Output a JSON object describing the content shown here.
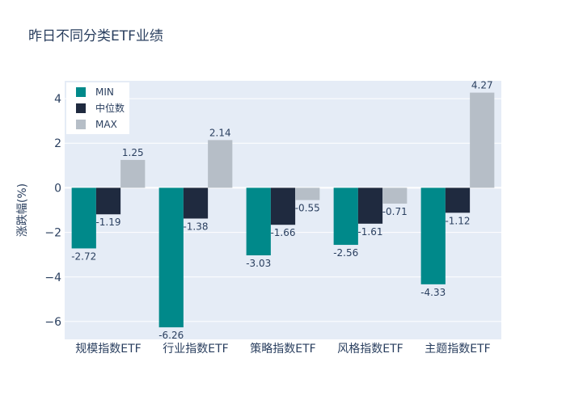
{
  "chart_data": {
    "type": "bar",
    "title": "昨日不同分类ETF业绩",
    "xlabel": "",
    "ylabel": "涨跌幅(%)",
    "ylim": [
      -6.8,
      4.8
    ],
    "yticks": [
      -6,
      -4,
      -2,
      0,
      2,
      4
    ],
    "grid": true,
    "legend_position": "top-left",
    "categories": [
      "规模指数ETF",
      "行业指数ETF",
      "策略指数ETF",
      "风格指数ETF",
      "主题指数ETF"
    ],
    "series": [
      {
        "name": "MIN",
        "color": "#00898a",
        "values": [
          -2.72,
          -6.26,
          -3.03,
          -2.56,
          -4.33
        ]
      },
      {
        "name": "中位数",
        "color": "#1f2a3f",
        "values": [
          -1.19,
          -1.38,
          -1.66,
          -1.61,
          -1.12
        ]
      },
      {
        "name": "MAX",
        "color": "#b6bec7",
        "values": [
          1.25,
          2.14,
          -0.55,
          -0.71,
          4.27
        ]
      }
    ]
  }
}
